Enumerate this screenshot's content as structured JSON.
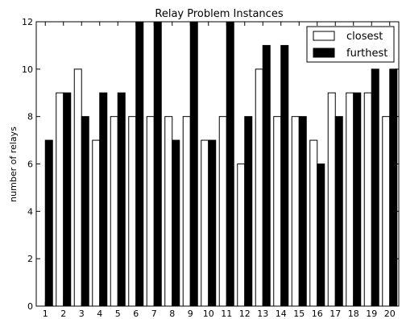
{
  "chart_data": {
    "type": "bar",
    "title": "Relay Problem Instances",
    "xlabel": "",
    "ylabel": "number of relays",
    "ylim": [
      0,
      12
    ],
    "yticks": [
      0,
      2,
      4,
      6,
      8,
      10,
      12
    ],
    "categories": [
      "1",
      "2",
      "3",
      "4",
      "5",
      "6",
      "7",
      "8",
      "9",
      "10",
      "11",
      "12",
      "13",
      "14",
      "15",
      "16",
      "17",
      "18",
      "19",
      "20"
    ],
    "series": [
      {
        "name": "closest",
        "color": "#ffffff",
        "values": [
          0,
          9,
          10,
          7,
          8,
          8,
          8,
          8,
          8,
          7,
          8,
          6,
          10,
          8,
          8,
          7,
          9,
          9,
          9,
          8
        ]
      },
      {
        "name": "furthest",
        "color": "#000000",
        "values": [
          7,
          9,
          8,
          9,
          9,
          12,
          12,
          7,
          12,
          7,
          12,
          8,
          11,
          11,
          8,
          6,
          8,
          9,
          10,
          10
        ]
      }
    ],
    "legend_position": "top-right",
    "grid": false
  }
}
